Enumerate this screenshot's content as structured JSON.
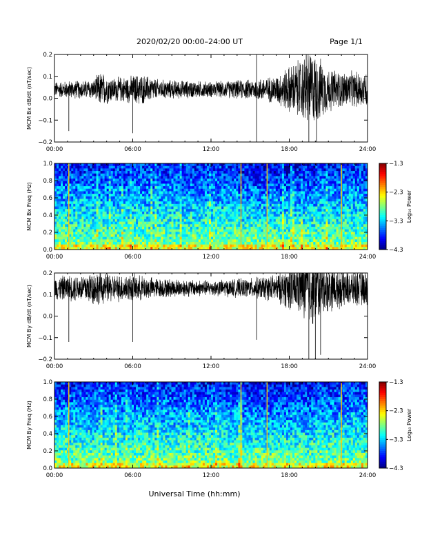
{
  "header": {
    "title": "2020/02/20  00:00–24:00 UT",
    "page": "Page 1/1"
  },
  "footer": {
    "xlabel": "Universal Time (hh:mm)"
  },
  "chart_data": [
    {
      "type": "line",
      "ylabel": "MCM Bx dB/dt (nT/sec)",
      "xlabel": "",
      "xticks": [
        "00:00",
        "06:00",
        "12:00",
        "18:00",
        "24:00"
      ],
      "xlim": [
        "00:00",
        "24:00"
      ],
      "ylim": [
        -0.2,
        0.2
      ],
      "yticks": [
        "0.2",
        "0.1",
        "0.0",
        "−0.1",
        "−0.2"
      ],
      "yvals": [
        0.2,
        0.1,
        0.0,
        -0.1,
        -0.2
      ],
      "grid": false,
      "series": [
        {
          "baseline": 0.04,
          "envelope": {
            "hours": [
              0,
              3,
              3.5,
              4.5,
              6,
              6.5,
              8,
              12,
              15,
              17,
              18,
              19,
              19.5,
              20,
              21,
              22,
              24
            ],
            "amp": [
              0.04,
              0.05,
              0.09,
              0.06,
              0.07,
              0.08,
              0.05,
              0.04,
              0.05,
              0.07,
              0.12,
              0.16,
              0.2,
              0.18,
              0.11,
              0.09,
              0.09
            ]
          },
          "spikes": [
            [
              1.1,
              -0.15
            ],
            [
              6.0,
              -0.16
            ],
            [
              15.5,
              0.2
            ],
            [
              15.5,
              -0.2
            ],
            [
              19.5,
              -0.2
            ],
            [
              20.1,
              -0.2
            ],
            [
              19.3,
              0.2
            ]
          ]
        }
      ]
    },
    {
      "type": "heatmap",
      "ylabel": "MCM Bx Freq (Hz)",
      "xticks": [
        "00:00",
        "06:00",
        "12:00",
        "18:00",
        "24:00"
      ],
      "xlim": [
        "00:00",
        "24:00"
      ],
      "ylim": [
        0.0,
        1.0
      ],
      "yticks": [
        "1.0",
        "0.8",
        "0.6",
        "0.4",
        "0.2",
        "0.0"
      ],
      "yvals": [
        1.0,
        0.8,
        0.6,
        0.4,
        0.2,
        0.0
      ],
      "colorbar": {
        "label": "Log₁₀ Power",
        "ticks": [
          "−1.3",
          "−2.3",
          "−3.3",
          "−4.3"
        ],
        "range": [
          -4.3,
          -1.3
        ]
      },
      "bright_lines_hours": [
        1.1,
        14.3,
        16.3,
        22.0
      ]
    },
    {
      "type": "line",
      "ylabel": "MCM By dB/dt (nT/sec)",
      "xticks": [
        "00:00",
        "06:00",
        "12:00",
        "18:00",
        "24:00"
      ],
      "xlim": [
        "00:00",
        "24:00"
      ],
      "ylim": [
        -0.2,
        0.2
      ],
      "yticks": [
        "0.2",
        "0.1",
        "0.0",
        "−0.1",
        "−0.2"
      ],
      "yvals": [
        0.2,
        0.1,
        0.0,
        -0.1,
        -0.2
      ],
      "grid": false,
      "series": [
        {
          "baseline": 0.13,
          "envelope": {
            "hours": [
              0,
              2,
              3,
              4.5,
              6,
              8,
              12,
              15,
              17,
              18,
              19,
              19.5,
              20,
              21,
              22,
              24
            ],
            "amp": [
              0.06,
              0.07,
              0.09,
              0.07,
              0.07,
              0.05,
              0.04,
              0.05,
              0.07,
              0.11,
              0.15,
              0.2,
              0.18,
              0.12,
              0.1,
              0.09
            ]
          },
          "spikes": [
            [
              1.1,
              -0.12
            ],
            [
              6.0,
              -0.12
            ],
            [
              15.5,
              -0.11
            ],
            [
              19.5,
              -0.2
            ],
            [
              20.0,
              -0.2
            ],
            [
              20.4,
              -0.18
            ]
          ]
        }
      ]
    },
    {
      "type": "heatmap",
      "ylabel": "MCM By Freq (Hz)",
      "xticks": [
        "00:00",
        "06:00",
        "12:00",
        "18:00",
        "24:00"
      ],
      "xlim": [
        "00:00",
        "24:00"
      ],
      "ylim": [
        0.0,
        1.0
      ],
      "yticks": [
        "1.0",
        "0.8",
        "0.6",
        "0.4",
        "0.2",
        "0.0"
      ],
      "yvals": [
        1.0,
        0.8,
        0.6,
        0.4,
        0.2,
        0.0
      ],
      "colorbar": {
        "label": "Log₁₀ Power",
        "ticks": [
          "−1.3",
          "−2.3",
          "−3.3",
          "−4.3"
        ],
        "range": [
          -4.3,
          -1.3
        ]
      },
      "bright_lines_hours": [
        1.1,
        14.3,
        16.3,
        22.0
      ]
    }
  ]
}
